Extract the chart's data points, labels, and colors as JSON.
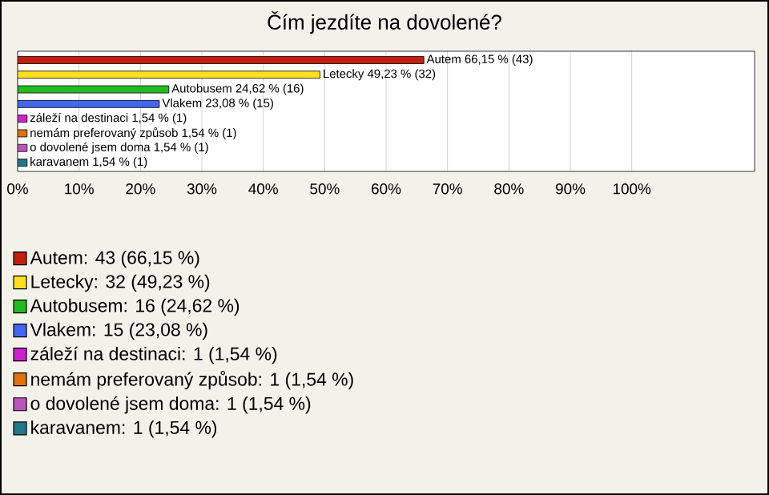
{
  "chart_data": {
    "type": "bar",
    "orientation": "horizontal",
    "title": "Čím jezdíte na dovolené?",
    "categories": [
      null,
      null,
      null,
      null,
      null,
      null,
      null,
      null
    ],
    "series": [
      {
        "name": "Autem: 43 (66,15 %)",
        "color": "#c0200c",
        "values": [
          66.15,
          null,
          null,
          null,
          null,
          null,
          null,
          null
        ],
        "value_labels": [
          "Autem 66,15 % (43)",
          null,
          null,
          null,
          null,
          null,
          null,
          null
        ]
      },
      {
        "name": "Letecky: 32 (49,23 %)",
        "color": "#ffe020",
        "values": [
          null,
          49.23,
          null,
          null,
          null,
          null,
          null,
          null
        ],
        "value_labels": [
          null,
          "Letecky 49,23 % (32)",
          null,
          null,
          null,
          null,
          null,
          null
        ]
      },
      {
        "name": "Autobusem: 16 (24,62 %)",
        "color": "#22bb22",
        "values": [
          null,
          null,
          24.62,
          null,
          null,
          null,
          null,
          null
        ],
        "value_labels": [
          null,
          null,
          "Autobusem 24,62 % (16)",
          null,
          null,
          null,
          null,
          null
        ]
      },
      {
        "name": "Vlakem: 15 (23,08 %)",
        "color": "#4466ee",
        "values": [
          null,
          null,
          null,
          23.08,
          null,
          null,
          null,
          null
        ],
        "value_labels": [
          null,
          null,
          null,
          "Vlakem 23,08 % (15)",
          null,
          null,
          null,
          null
        ]
      },
      {
        "name": "záleží na destinaci: 1 (1,54 %)",
        "color": "#cc22cc",
        "values": [
          null,
          null,
          null,
          null,
          1.54,
          null,
          null,
          null
        ],
        "value_labels": [
          null,
          null,
          null,
          null,
          "záleží na destinaci 1,54 % (1)",
          null,
          null,
          null
        ]
      },
      {
        "name": "nemám preferovaný způsob: 1 (1,54 %)",
        "color": "#e07010",
        "values": [
          null,
          null,
          null,
          null,
          null,
          1.54,
          null,
          null
        ],
        "value_labels": [
          null,
          null,
          null,
          null,
          null,
          "nemám preferovaný způsob 1,54 % (1)",
          null,
          null
        ]
      },
      {
        "name": "o dovolené jsem doma: 1 (1,54 %)",
        "color": "#bb55bb",
        "values": [
          null,
          null,
          null,
          null,
          null,
          null,
          1.54,
          null
        ],
        "value_labels": [
          null,
          null,
          null,
          null,
          null,
          null,
          "o dovolené jsem doma 1,54 % (1)",
          null
        ]
      },
      {
        "name": "karavanem: 1 (1,54 %)",
        "color": "#227788",
        "values": [
          null,
          null,
          null,
          null,
          null,
          null,
          null,
          1.54
        ],
        "value_labels": [
          null,
          null,
          null,
          null,
          null,
          null,
          null,
          "karavanem 1,54 % (1)"
        ]
      }
    ],
    "xlim": [
      0,
      120
    ],
    "xticks": [
      {
        "value": 0,
        "label": "0%"
      },
      {
        "value": 10,
        "label": "10%"
      },
      {
        "value": 20,
        "label": "20%"
      },
      {
        "value": 30,
        "label": "30%"
      },
      {
        "value": 40,
        "label": "40%"
      },
      {
        "value": 50,
        "label": "50%"
      },
      {
        "value": 60,
        "label": "60%"
      },
      {
        "value": 70,
        "label": "70%"
      },
      {
        "value": 80,
        "label": "80%"
      },
      {
        "value": 90,
        "label": "90%"
      },
      {
        "value": 100,
        "label": "100%"
      }
    ],
    "grid": "x",
    "legend": "bottom"
  }
}
